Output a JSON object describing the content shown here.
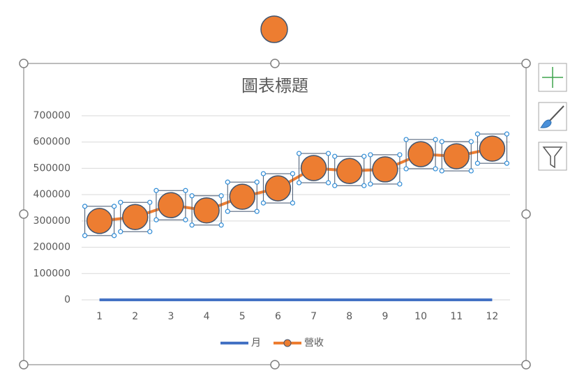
{
  "chart_data": {
    "type": "line",
    "title": "圖表標題",
    "categories": [
      "1",
      "2",
      "3",
      "4",
      "5",
      "6",
      "7",
      "8",
      "9",
      "10",
      "11",
      "12"
    ],
    "series": [
      {
        "name": "月",
        "color": "#4472c4",
        "values": [
          1,
          2,
          3,
          4,
          5,
          6,
          7,
          8,
          9,
          10,
          11,
          12
        ]
      },
      {
        "name": "營收",
        "color": "#ed7d31",
        "values": [
          300000,
          315000,
          360000,
          340000,
          392000,
          424000,
          501000,
          490000,
          496000,
          554000,
          546000,
          575000
        ]
      }
    ],
    "ylim": [
      0,
      700000
    ],
    "yticks": [
      0,
      100000,
      200000,
      300000,
      400000,
      500000,
      600000,
      700000
    ],
    "grid": true,
    "legend": "bottom"
  }
}
